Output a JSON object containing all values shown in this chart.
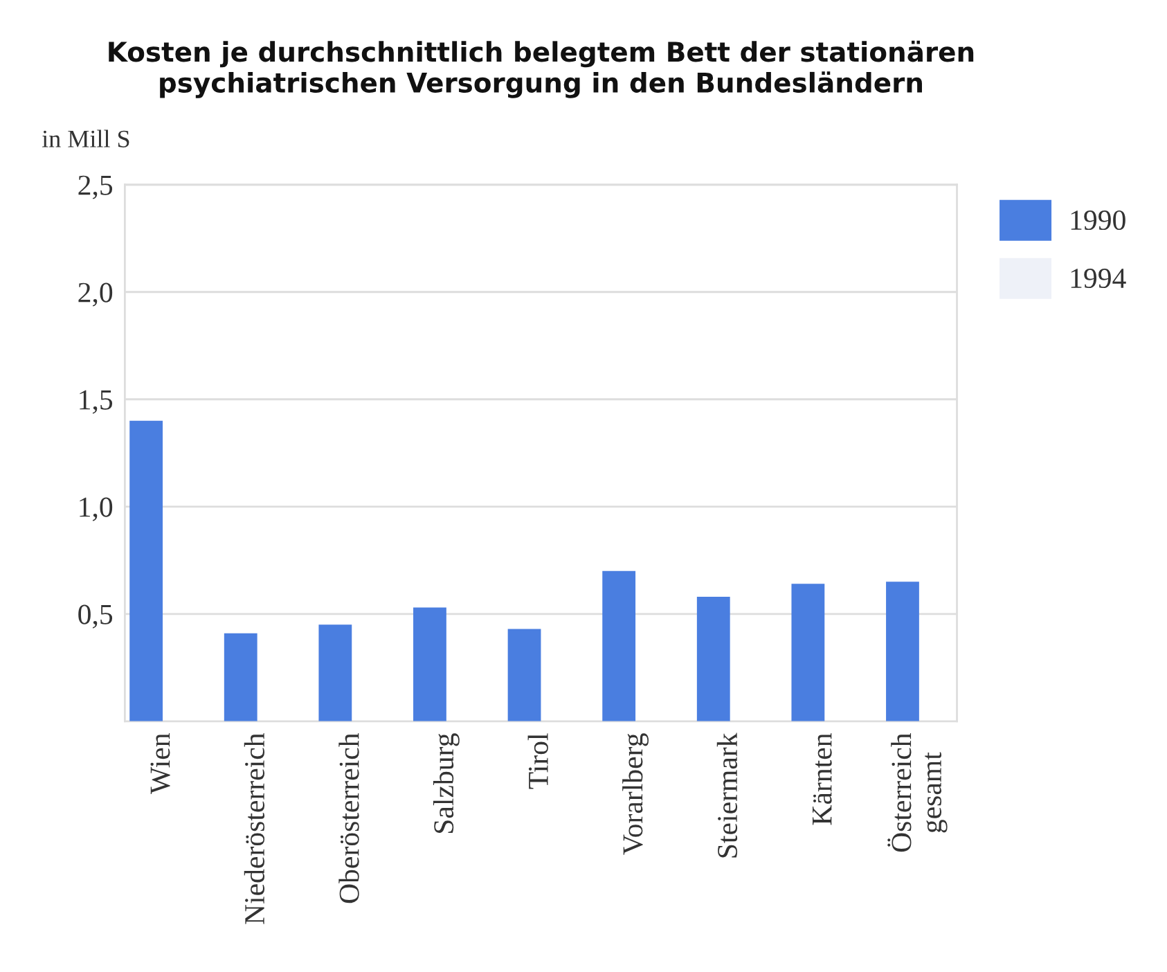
{
  "chart_data": {
    "type": "bar",
    "title": "Kosten je durchschnittlich belegtem Bett der stationären\npsychiatrischen Versorgung in den Bundesländern",
    "ylabel": "in Mill S",
    "categories": [
      "Wien",
      "Niederösterreich",
      "Oberösterreich",
      "Salzburg",
      "Tirol",
      "Vorarlberg",
      "Steiermark",
      "Kärnten",
      "Österreich\ngesamt"
    ],
    "series": [
      {
        "name": "1990",
        "color": "#4a7ee0",
        "values": [
          1.4,
          0.41,
          0.45,
          0.53,
          0.43,
          0.7,
          0.58,
          0.64,
          0.65
        ]
      },
      {
        "name": "1994",
        "color": "#eef1f8",
        "values": [
          null,
          null,
          null,
          null,
          null,
          null,
          null,
          null,
          null
        ]
      }
    ],
    "ylim": [
      0,
      2.5
    ],
    "yticks": [
      {
        "value": 0.5,
        "label": "0,5"
      },
      {
        "value": 1.0,
        "label": "1,0"
      },
      {
        "value": 1.5,
        "label": "1,5"
      },
      {
        "value": 2.0,
        "label": "2,0"
      },
      {
        "value": 2.5,
        "label": "2,5"
      }
    ],
    "grid": "y",
    "legend": "top right"
  }
}
